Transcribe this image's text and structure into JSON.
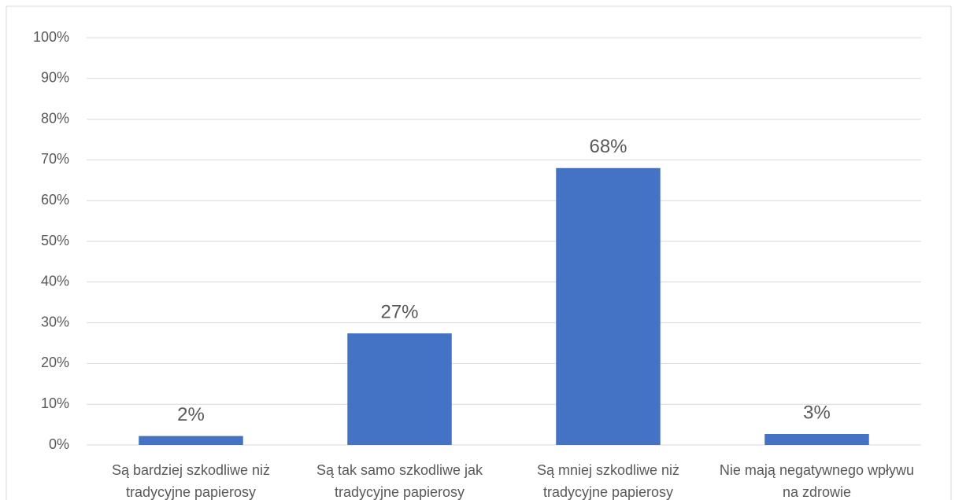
{
  "chart_data": {
    "type": "bar",
    "categories": [
      "Są bardziej szkodliwe niż tradycyjne papierosy",
      "Są tak samo szkodliwe jak tradycyjne papierosy",
      "Są mniej szkodliwe niż tradycyjne papierosy",
      "Nie mają negatywnego wpływu na zdrowie"
    ],
    "values": [
      2.2,
      27.4,
      68,
      2.7
    ],
    "value_labels": [
      "2%",
      "27%",
      "68%",
      "3%"
    ],
    "color": "#4472c4",
    "ylim": [
      0,
      100
    ],
    "yticks": [
      {
        "value": 0,
        "label": "0%"
      },
      {
        "value": 10,
        "label": "10%"
      },
      {
        "value": 20,
        "label": "20%"
      },
      {
        "value": 30,
        "label": "30%"
      },
      {
        "value": 40,
        "label": "40%"
      },
      {
        "value": 50,
        "label": "50%"
      },
      {
        "value": 60,
        "label": "60%"
      },
      {
        "value": 70,
        "label": "70%"
      },
      {
        "value": 80,
        "label": "80%"
      },
      {
        "value": 90,
        "label": "90%"
      },
      {
        "value": 100,
        "label": "100%"
      }
    ],
    "grid": true
  }
}
